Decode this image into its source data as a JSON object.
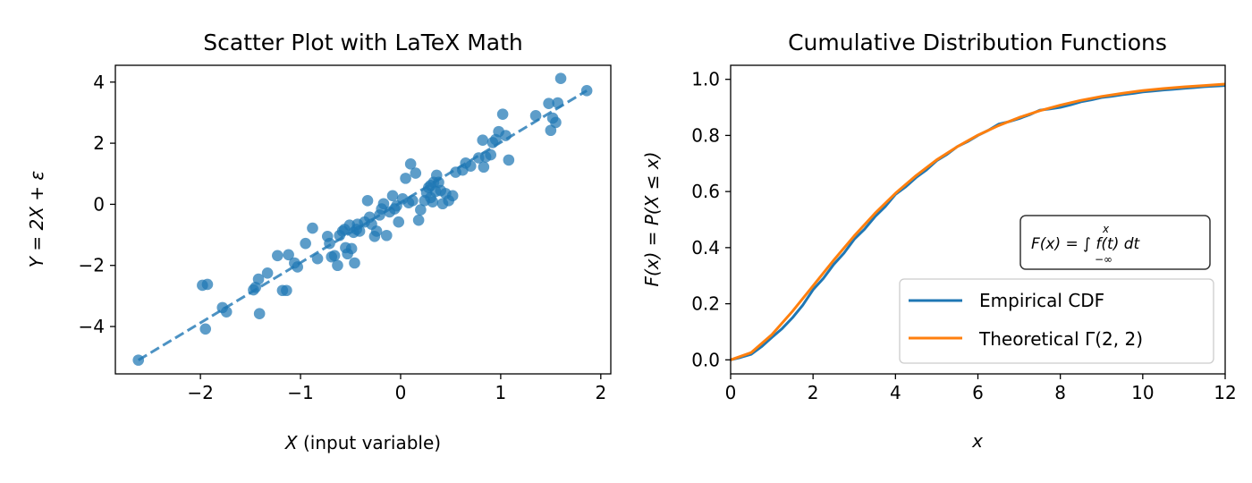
{
  "chart_data": [
    {
      "type": "scatter",
      "title": "Scatter Plot with LaTeX Math",
      "xlabel_var": "X",
      "xlabel_rest": " (input variable)",
      "ylabel": "Y = 2X + ε",
      "xlim": [
        -2.85,
        2.1
      ],
      "ylim": [
        -5.55,
        4.55
      ],
      "xticks": [
        -2,
        -1,
        0,
        1,
        2
      ],
      "xtick_labels": [
        "−2",
        "−1",
        "0",
        "1",
        "2"
      ],
      "yticks": [
        -4,
        -2,
        0,
        2,
        4
      ],
      "ytick_labels": [
        "−4",
        "−2",
        "0",
        "2",
        "4"
      ],
      "grid": false,
      "point_color": "#1f77b4",
      "fit_line": {
        "style": "dashed",
        "color": "#1f77b4",
        "x": [
          -2.62,
          1.86
        ],
        "y": [
          -5.1,
          3.72
        ]
      },
      "points": [
        [
          -2.62,
          -5.1
        ],
        [
          -1.98,
          -2.65
        ],
        [
          -1.93,
          -2.62
        ],
        [
          -1.95,
          -4.08
        ],
        [
          -1.78,
          -3.38
        ],
        [
          -1.74,
          -3.52
        ],
        [
          -1.47,
          -2.8
        ],
        [
          -1.45,
          -2.72
        ],
        [
          -1.42,
          -2.45
        ],
        [
          -1.41,
          -3.58
        ],
        [
          -1.33,
          -2.25
        ],
        [
          -1.23,
          -1.68
        ],
        [
          -1.18,
          -2.82
        ],
        [
          -1.14,
          -2.82
        ],
        [
          -1.12,
          -1.65
        ],
        [
          -1.06,
          -1.92
        ],
        [
          -1.03,
          -2.05
        ],
        [
          -0.95,
          -1.28
        ],
        [
          -0.88,
          -0.78
        ],
        [
          -0.83,
          -1.78
        ],
        [
          -0.73,
          -1.05
        ],
        [
          -0.71,
          -1.28
        ],
        [
          -0.69,
          -1.72
        ],
        [
          -0.66,
          -1.68
        ],
        [
          -0.63,
          -2.0
        ],
        [
          -0.61,
          -1.02
        ],
        [
          -0.58,
          -0.88
        ],
        [
          -0.56,
          -0.82
        ],
        [
          -0.55,
          -1.42
        ],
        [
          -0.53,
          -1.62
        ],
        [
          -0.51,
          -0.68
        ],
        [
          -0.49,
          -1.45
        ],
        [
          -0.47,
          -0.92
        ],
        [
          -0.46,
          -1.92
        ],
        [
          -0.44,
          -0.82
        ],
        [
          -0.43,
          -0.65
        ],
        [
          -0.41,
          -0.88
        ],
        [
          -0.36,
          -0.58
        ],
        [
          -0.33,
          0.12
        ],
        [
          -0.31,
          -0.42
        ],
        [
          -0.29,
          -0.65
        ],
        [
          -0.26,
          -1.05
        ],
        [
          -0.24,
          -0.88
        ],
        [
          -0.21,
          -0.35
        ],
        [
          -0.19,
          -0.15
        ],
        [
          -0.17,
          0.02
        ],
        [
          -0.14,
          -1.02
        ],
        [
          -0.11,
          -0.25
        ],
        [
          -0.08,
          0.28
        ],
        [
          -0.06,
          -0.15
        ],
        [
          -0.04,
          -0.05
        ],
        [
          -0.02,
          -0.58
        ],
        [
          0.02,
          0.18
        ],
        [
          0.05,
          0.85
        ],
        [
          0.08,
          0.05
        ],
        [
          0.1,
          1.32
        ],
        [
          0.12,
          0.12
        ],
        [
          0.15,
          1.02
        ],
        [
          0.18,
          -0.52
        ],
        [
          0.2,
          -0.18
        ],
        [
          0.24,
          0.12
        ],
        [
          0.26,
          0.38
        ],
        [
          0.28,
          0.55
        ],
        [
          0.3,
          0.62
        ],
        [
          0.3,
          0.22
        ],
        [
          0.32,
          0.08
        ],
        [
          0.33,
          0.72
        ],
        [
          0.35,
          0.42
        ],
        [
          0.36,
          0.95
        ],
        [
          0.38,
          0.72
        ],
        [
          0.4,
          0.45
        ],
        [
          0.42,
          0.02
        ],
        [
          0.45,
          0.35
        ],
        [
          0.48,
          0.12
        ],
        [
          0.52,
          0.28
        ],
        [
          0.55,
          1.05
        ],
        [
          0.62,
          1.12
        ],
        [
          0.65,
          1.35
        ],
        [
          0.7,
          1.25
        ],
        [
          0.78,
          1.52
        ],
        [
          0.82,
          2.1
        ],
        [
          0.83,
          1.22
        ],
        [
          0.85,
          1.55
        ],
        [
          0.9,
          1.62
        ],
        [
          0.92,
          2.02
        ],
        [
          0.95,
          2.12
        ],
        [
          0.98,
          2.38
        ],
        [
          1.02,
          2.95
        ],
        [
          1.05,
          2.25
        ],
        [
          1.08,
          1.45
        ],
        [
          1.35,
          2.9
        ],
        [
          1.48,
          3.3
        ],
        [
          1.5,
          2.42
        ],
        [
          1.52,
          2.82
        ],
        [
          1.55,
          2.68
        ],
        [
          1.57,
          3.32
        ],
        [
          1.6,
          4.12
        ],
        [
          1.86,
          3.72
        ]
      ]
    },
    {
      "type": "line",
      "title": "Cumulative Distribution Functions",
      "xlabel": "x",
      "ylabel": "F(x) = P(X ≤ x)",
      "xlim": [
        0,
        12
      ],
      "ylim": [
        -0.05,
        1.05
      ],
      "xticks": [
        0,
        2,
        4,
        6,
        8,
        10,
        12
      ],
      "xtick_labels": [
        "0",
        "2",
        "4",
        "6",
        "8",
        "10",
        "12"
      ],
      "yticks": [
        0.0,
        0.2,
        0.4,
        0.6,
        0.8,
        1.0
      ],
      "ytick_labels": [
        "0.0",
        "0.2",
        "0.4",
        "0.6",
        "0.8",
        "1.0"
      ],
      "grid": false,
      "legend_position": "lower-right",
      "annotation": "F(x) = ∫ f(t) dt",
      "annotation_upper": "x",
      "annotation_lower": "−∞",
      "series": [
        {
          "name": "Empirical CDF",
          "color": "#1f77b4",
          "x": [
            0,
            0.5,
            1,
            1.5,
            2,
            2.5,
            3,
            3.5,
            4,
            4.5,
            5,
            5.5,
            6,
            6.5,
            7,
            7.5,
            8,
            8.5,
            9,
            9.5,
            10,
            10.5,
            11,
            11.5,
            12
          ],
          "y": [
            0.0,
            0.02,
            0.08,
            0.15,
            0.25,
            0.34,
            0.43,
            0.51,
            0.59,
            0.65,
            0.71,
            0.76,
            0.8,
            0.84,
            0.86,
            0.89,
            0.9,
            0.92,
            0.935,
            0.945,
            0.955,
            0.962,
            0.968,
            0.974,
            0.978
          ]
        },
        {
          "name": "Theoretical Γ(2, 2)",
          "color": "#ff7f0e",
          "x": [
            0,
            0.5,
            1,
            1.5,
            2,
            2.5,
            3,
            3.5,
            4,
            4.5,
            5,
            5.5,
            6,
            6.5,
            7,
            7.5,
            8,
            8.5,
            9,
            9.5,
            10,
            10.5,
            11,
            11.5,
            12
          ],
          "y": [
            0.0,
            0.026,
            0.09,
            0.173,
            0.264,
            0.355,
            0.442,
            0.522,
            0.594,
            0.657,
            0.713,
            0.76,
            0.801,
            0.835,
            0.864,
            0.888,
            0.908,
            0.925,
            0.939,
            0.95,
            0.96,
            0.967,
            0.973,
            0.978,
            0.983
          ]
        }
      ]
    }
  ]
}
